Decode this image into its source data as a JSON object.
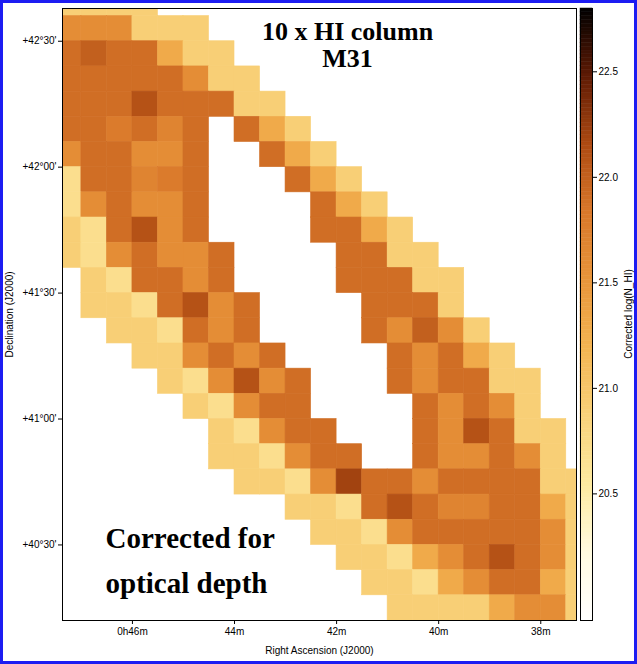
{
  "chart_data": {
    "type": "heatmap",
    "title": "10 x HI column\nM31",
    "annotations": [
      "Corrected for\noptical depth"
    ],
    "x_label": "Right Ascension (J2000)",
    "y_label": "Declination (J2000)",
    "xlim": [
      47.37,
      37.3
    ],
    "xticks": [
      {
        "value": 46,
        "label": "0h46m"
      },
      {
        "value": 44,
        "label": "44m"
      },
      {
        "value": 42,
        "label": "42m"
      },
      {
        "value": 40,
        "label": "40m"
      },
      {
        "value": 38,
        "label": "38m"
      }
    ],
    "ylim": [
      40.2,
      42.63
    ],
    "yticks": [
      {
        "value": 42.5,
        "label": "+42°30'"
      },
      {
        "value": 42,
        "label": "+42°00'"
      },
      {
        "value": 41.5,
        "label": "+41°30'"
      },
      {
        "value": 41,
        "label": "+41°00'"
      },
      {
        "value": 40.5,
        "label": "+40°30'"
      }
    ],
    "grid": false,
    "xbins": [
      47.5,
      47.0,
      46.5,
      46.0,
      45.5,
      45.0,
      44.5,
      44.0,
      43.5,
      43.0,
      42.5,
      42.0,
      41.5,
      41.0,
      40.5,
      40.0,
      39.5,
      39.0,
      38.5,
      38.0,
      37.5,
      37.0
    ],
    "ybins": [
      42.7,
      42.6,
      42.5,
      42.4,
      42.3,
      42.2,
      42.1,
      42.0,
      41.9,
      41.8,
      41.7,
      41.6,
      41.5,
      41.4,
      41.3,
      41.2,
      41.1,
      41.0,
      40.9,
      40.8,
      40.7,
      40.6,
      40.5,
      40.4,
      40.3,
      40.2
    ],
    "values": [
      [
        20.9,
        20.9,
        20.9,
        20.9,
        null,
        null,
        null,
        null,
        null,
        null,
        null,
        null,
        null,
        null,
        null,
        null,
        null,
        null,
        null,
        null,
        null
      ],
      [
        21.6,
        21.6,
        21.6,
        20.9,
        20.9,
        20.9,
        null,
        null,
        null,
        null,
        null,
        null,
        null,
        null,
        null,
        null,
        null,
        null,
        null,
        null,
        null
      ],
      [
        21.9,
        22.0,
        21.9,
        21.9,
        21.3,
        20.9,
        20.9,
        null,
        null,
        null,
        null,
        null,
        null,
        null,
        null,
        null,
        null,
        null,
        null,
        null,
        null
      ],
      [
        21.9,
        21.9,
        21.9,
        21.9,
        21.9,
        21.6,
        20.9,
        20.9,
        null,
        null,
        null,
        null,
        null,
        null,
        null,
        null,
        null,
        null,
        null,
        null,
        null
      ],
      [
        21.9,
        21.9,
        21.9,
        22.1,
        21.9,
        21.9,
        21.9,
        20.9,
        20.9,
        null,
        null,
        null,
        null,
        null,
        null,
        null,
        null,
        null,
        null,
        null,
        null
      ],
      [
        21.9,
        21.9,
        21.8,
        21.9,
        21.7,
        21.9,
        null,
        21.9,
        21.3,
        20.9,
        null,
        null,
        null,
        null,
        null,
        null,
        null,
        null,
        null,
        null,
        null
      ],
      [
        21.6,
        21.9,
        21.9,
        21.6,
        21.6,
        21.9,
        null,
        null,
        21.9,
        21.3,
        20.9,
        null,
        null,
        null,
        null,
        null,
        null,
        null,
        null,
        null,
        null
      ],
      [
        20.7,
        21.9,
        21.9,
        21.7,
        21.8,
        21.9,
        null,
        null,
        null,
        21.9,
        21.3,
        20.9,
        null,
        null,
        null,
        null,
        null,
        null,
        null,
        null,
        null
      ],
      [
        20.7,
        21.6,
        21.9,
        21.6,
        21.6,
        21.9,
        null,
        null,
        null,
        null,
        21.9,
        21.3,
        20.9,
        null,
        null,
        null,
        null,
        null,
        null,
        null,
        null
      ],
      [
        20.9,
        20.7,
        21.9,
        22.1,
        21.6,
        21.9,
        null,
        null,
        null,
        null,
        21.9,
        21.9,
        21.3,
        20.9,
        null,
        null,
        null,
        null,
        null,
        null,
        null
      ],
      [
        20.9,
        20.7,
        21.6,
        21.9,
        21.6,
        21.6,
        21.9,
        null,
        null,
        null,
        null,
        21.9,
        21.9,
        20.9,
        20.9,
        null,
        null,
        null,
        null,
        null,
        null
      ],
      [
        null,
        20.9,
        20.7,
        21.9,
        21.9,
        21.6,
        21.9,
        null,
        null,
        null,
        null,
        21.9,
        21.9,
        21.9,
        20.9,
        20.9,
        null,
        null,
        null,
        null,
        null
      ],
      [
        null,
        20.9,
        20.9,
        20.7,
        21.9,
        22.1,
        21.6,
        21.9,
        null,
        null,
        null,
        null,
        21.9,
        21.9,
        21.9,
        20.9,
        null,
        null,
        null,
        null,
        null
      ],
      [
        null,
        null,
        20.9,
        20.9,
        20.7,
        21.9,
        21.6,
        21.9,
        null,
        null,
        null,
        null,
        21.9,
        21.6,
        22.0,
        21.6,
        20.9,
        null,
        null,
        null,
        null
      ],
      [
        null,
        null,
        null,
        20.9,
        20.9,
        21.6,
        21.9,
        21.6,
        21.9,
        null,
        null,
        null,
        null,
        21.9,
        21.6,
        21.9,
        21.3,
        20.9,
        null,
        null,
        null
      ],
      [
        null,
        null,
        null,
        null,
        20.9,
        20.7,
        21.6,
        22.1,
        21.6,
        21.9,
        null,
        null,
        null,
        21.9,
        21.6,
        21.9,
        21.9,
        20.9,
        20.9,
        null,
        null
      ],
      [
        null,
        null,
        null,
        null,
        null,
        20.9,
        20.7,
        21.6,
        21.9,
        21.9,
        null,
        null,
        null,
        null,
        21.9,
        21.6,
        21.9,
        21.6,
        20.9,
        null,
        null
      ],
      [
        null,
        null,
        null,
        null,
        null,
        null,
        20.9,
        20.7,
        21.6,
        21.9,
        21.9,
        null,
        null,
        null,
        21.9,
        21.6,
        22.1,
        21.9,
        20.9,
        20.9,
        null
      ],
      [
        null,
        null,
        null,
        null,
        null,
        null,
        20.9,
        20.9,
        20.7,
        21.6,
        21.9,
        21.9,
        null,
        null,
        21.9,
        21.6,
        21.6,
        21.9,
        21.6,
        20.9,
        null
      ],
      [
        null,
        null,
        null,
        null,
        null,
        null,
        null,
        20.9,
        20.9,
        20.7,
        21.6,
        22.2,
        21.9,
        21.9,
        21.6,
        21.9,
        21.9,
        21.9,
        21.9,
        20.9,
        20.9
      ],
      [
        null,
        null,
        null,
        null,
        null,
        null,
        null,
        null,
        null,
        20.9,
        20.9,
        20.7,
        21.9,
        22.1,
        21.9,
        21.7,
        21.7,
        21.9,
        21.9,
        21.3,
        20.9
      ],
      [
        null,
        null,
        null,
        null,
        null,
        null,
        null,
        null,
        null,
        null,
        20.9,
        20.9,
        20.7,
        21.6,
        21.9,
        21.9,
        21.9,
        21.9,
        21.9,
        21.6,
        20.9
      ],
      [
        null,
        null,
        null,
        null,
        null,
        null,
        null,
        null,
        null,
        null,
        null,
        20.9,
        20.9,
        20.7,
        21.3,
        21.6,
        21.9,
        22.1,
        21.9,
        21.6,
        20.9
      ],
      [
        null,
        null,
        null,
        null,
        null,
        null,
        null,
        null,
        null,
        null,
        null,
        null,
        20.9,
        20.9,
        20.7,
        21.3,
        21.6,
        21.9,
        21.9,
        21.3,
        20.9
      ],
      [
        null,
        null,
        null,
        null,
        null,
        null,
        null,
        null,
        null,
        null,
        null,
        null,
        null,
        20.9,
        20.9,
        20.9,
        20.9,
        21.3,
        21.6,
        21.6,
        20.9
      ]
    ],
    "colorbar": {
      "label": "Corrected log(N_HI)",
      "range": [
        19.9,
        22.8
      ],
      "ticks": [
        22.5,
        {
          "value": 22,
          "label": "22.0"
        },
        21.5,
        {
          "value": 21,
          "label": "21.0"
        },
        20.5
      ]
    }
  }
}
